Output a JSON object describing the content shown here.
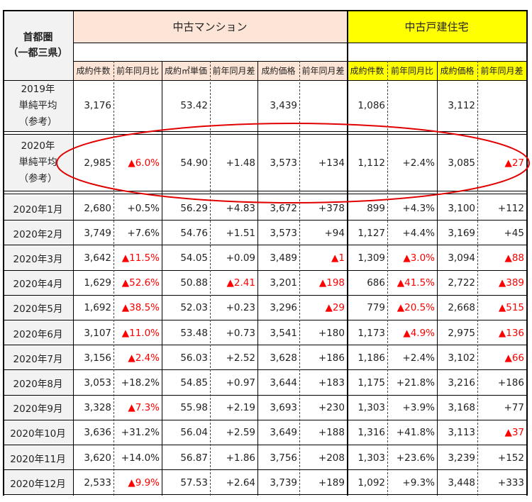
{
  "header": {
    "region": [
      "首都圏",
      "（一都三県）"
    ],
    "group_condo": "中古マンション",
    "group_house": "中古戸建住宅",
    "columns": [
      "成約件数",
      "前年同月比",
      "成約㎡単価",
      "前年同月差",
      "成約価格",
      "前年同月差",
      "成約件数",
      "前年同月比",
      "成約価格",
      "前年同月差"
    ]
  },
  "colors": {
    "condo_header": "#fce4d6",
    "house_header": "#ffff00",
    "negative": "#ff0000",
    "label_bg": "#f2f2f2",
    "ellipse": "#e00000"
  },
  "neg_marker": "▲",
  "summary_rows": [
    {
      "label": [
        "2019年",
        "単純平均",
        "（参考）"
      ],
      "values": [
        "3,176",
        "",
        "53.42",
        "",
        "3,439",
        "",
        "1,086",
        "",
        "3,112",
        ""
      ]
    },
    {
      "label": [
        "2020年",
        "単純平均",
        "（参考）"
      ],
      "values": [
        "2,985",
        "▲6.0%",
        "54.90",
        "+1.48",
        "3,573",
        "+134",
        "1,112",
        "+2.4%",
        "3,085",
        "▲27"
      ]
    }
  ],
  "monthly_rows": [
    {
      "label": "2020年1月",
      "values": [
        "2,680",
        "+0.5%",
        "56.29",
        "+4.83",
        "3,672",
        "+378",
        "899",
        "+4.3%",
        "3,100",
        "+112"
      ]
    },
    {
      "label": "2020年2月",
      "values": [
        "3,749",
        "+7.6%",
        "54.76",
        "+1.51",
        "3,573",
        "+94",
        "1,127",
        "+4.4%",
        "3,169",
        "+45"
      ]
    },
    {
      "label": "2020年3月",
      "values": [
        "3,642",
        "▲11.5%",
        "54.05",
        "+0.09",
        "3,489",
        "▲1",
        "1,309",
        "▲3.0%",
        "3,094",
        "▲88"
      ]
    },
    {
      "label": "2020年4月",
      "values": [
        "1,629",
        "▲52.6%",
        "50.88",
        "▲2.41",
        "3,201",
        "▲198",
        "686",
        "▲41.5%",
        "2,722",
        "▲389"
      ]
    },
    {
      "label": "2020年5月",
      "values": [
        "1,692",
        "▲38.5%",
        "52.03",
        "+0.23",
        "3,296",
        "▲29",
        "779",
        "▲20.5%",
        "2,668",
        "▲515"
      ]
    },
    {
      "label": "2020年6月",
      "values": [
        "3,107",
        "▲11.0%",
        "53.48",
        "+0.73",
        "3,541",
        "+180",
        "1,173",
        "▲4.9%",
        "2,975",
        "▲136"
      ]
    },
    {
      "label": "2020年7月",
      "values": [
        "3,156",
        "▲2.4%",
        "56.03",
        "+2.52",
        "3,628",
        "+186",
        "1,186",
        "+2.4%",
        "3,102",
        "▲66"
      ]
    },
    {
      "label": "2020年8月",
      "values": [
        "3,053",
        "+18.2%",
        "54.85",
        "+0.97",
        "3,644",
        "+183",
        "1,175",
        "+21.8%",
        "3,216",
        "+186"
      ]
    },
    {
      "label": "2020年9月",
      "values": [
        "3,328",
        "▲7.3%",
        "55.98",
        "+2.19",
        "3,693",
        "+230",
        "1,303",
        "+3.9%",
        "3,168",
        "+77"
      ]
    },
    {
      "label": "2020年10月",
      "values": [
        "3,636",
        "+31.2%",
        "56.04",
        "+2.59",
        "3,649",
        "+188",
        "1,316",
        "+41.8%",
        "3,113",
        "▲37"
      ]
    },
    {
      "label": "2020年11月",
      "values": [
        "3,620",
        "+14.0%",
        "56.87",
        "+1.86",
        "3,756",
        "+208",
        "1,303",
        "+23.6%",
        "3,239",
        "+152"
      ]
    },
    {
      "label": "2020年12月",
      "values": [
        "2,533",
        "▲9.9%",
        "57.53",
        "+2.64",
        "3,739",
        "+189",
        "1,092",
        "+9.3%",
        "3,448",
        "+333"
      ]
    }
  ]
}
